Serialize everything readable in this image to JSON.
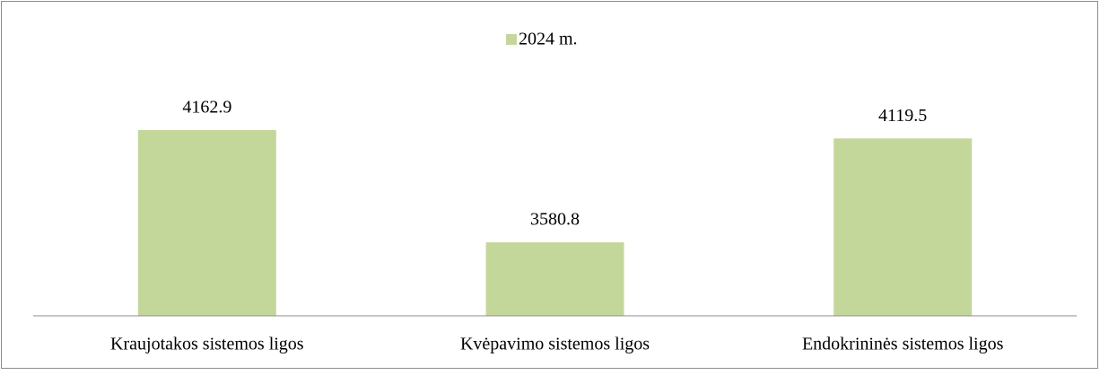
{
  "chart_data": {
    "type": "bar",
    "categories": [
      "Kraujotakos sistemos ligos",
      "Kvėpavimo sistemos ligos",
      "Endokrininės sistemos ligos"
    ],
    "series": [
      {
        "name": "2024 m.",
        "color": "#c4d79b",
        "values": [
          4162.9,
          3580.8,
          4119.5
        ]
      }
    ],
    "ylim": [
      3200,
      4400
    ],
    "legend": "top"
  }
}
